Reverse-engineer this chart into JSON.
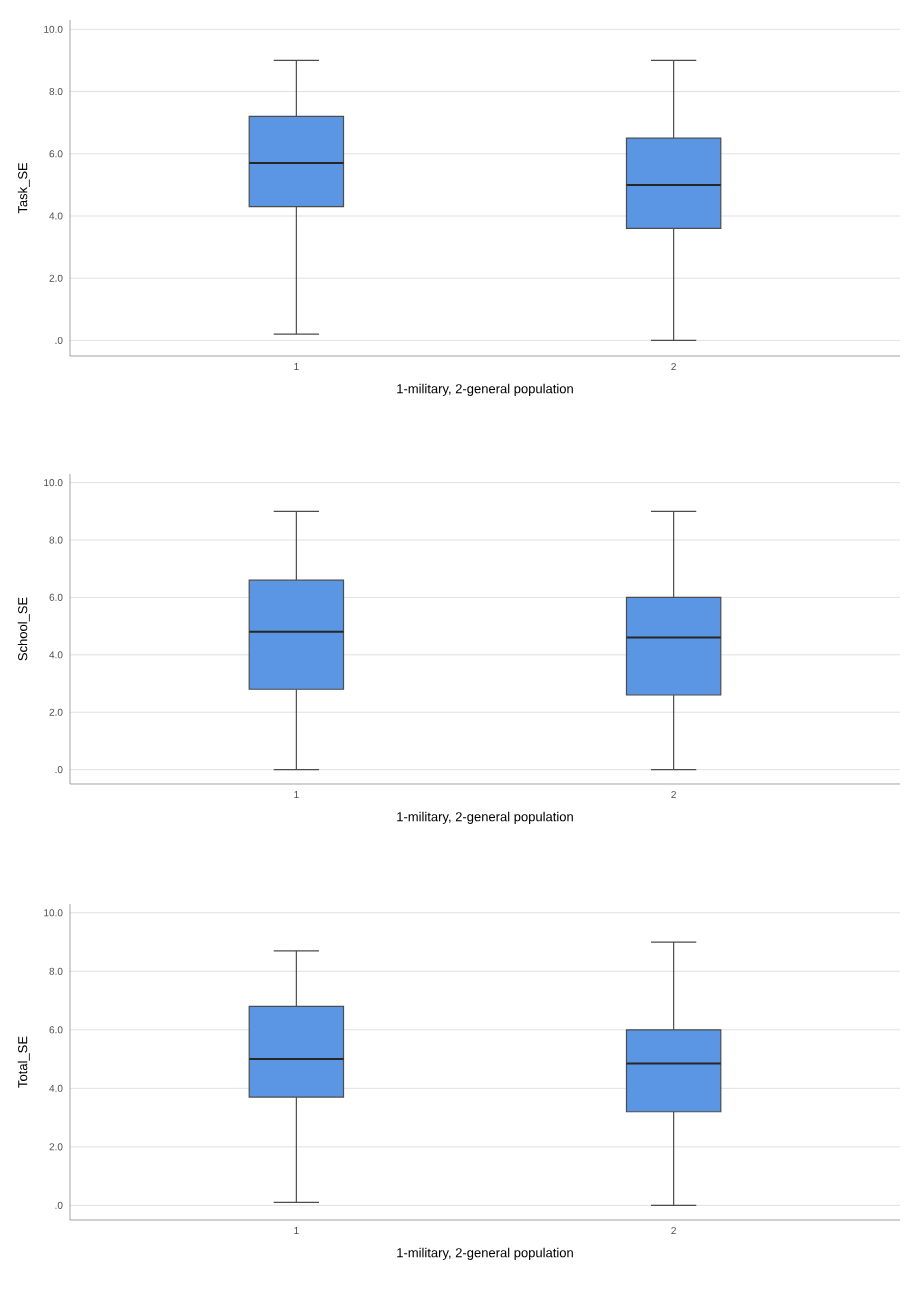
{
  "chart_data": [
    {
      "type": "box",
      "categories": [
        "1",
        "2"
      ],
      "xlabel": "1-military, 2-general population",
      "ylabel": "Task_SE",
      "ylim": [
        -0.5,
        10.3
      ],
      "yticks": [
        {
          "value": 0,
          "label": ".0"
        },
        {
          "value": 2,
          "label": "2.0"
        },
        {
          "value": 4,
          "label": "4.0"
        },
        {
          "value": 6,
          "label": "6.0"
        },
        {
          "value": 8,
          "label": "8.0"
        },
        {
          "value": 10,
          "label": "10.0"
        }
      ],
      "grid": "y",
      "color": "#5a96e3",
      "boxes": [
        {
          "low": 0.2,
          "q1": 4.3,
          "median": 5.7,
          "q3": 7.2,
          "high": 9.0
        },
        {
          "low": 0,
          "q1": 3.6,
          "median": 5.0,
          "q3": 6.5,
          "high": 9.0
        }
      ]
    },
    {
      "type": "box",
      "categories": [
        "1",
        "2"
      ],
      "xlabel": "1-military, 2-general population",
      "ylabel": "School_SE",
      "ylim": [
        -0.5,
        10.3
      ],
      "yticks": [
        {
          "value": 0,
          "label": ".0"
        },
        {
          "value": 2,
          "label": "2.0"
        },
        {
          "value": 4,
          "label": "4.0"
        },
        {
          "value": 6,
          "label": "6.0"
        },
        {
          "value": 8,
          "label": "8.0"
        },
        {
          "value": 10,
          "label": "10.0"
        }
      ],
      "grid": "y",
      "color": "#5a96e3",
      "boxes": [
        {
          "low": 0,
          "q1": 2.8,
          "median": 4.8,
          "q3": 6.6,
          "high": 9.0
        },
        {
          "low": 0,
          "q1": 2.6,
          "median": 4.6,
          "q3": 6.0,
          "high": 9.0
        }
      ]
    },
    {
      "type": "box",
      "categories": [
        "1",
        "2"
      ],
      "xlabel": "1-military, 2-general population",
      "ylabel": "Total_SE",
      "ylim": [
        -0.5,
        10.3
      ],
      "yticks": [
        {
          "value": 0,
          "label": ".0"
        },
        {
          "value": 2,
          "label": "2.0"
        },
        {
          "value": 4,
          "label": "4.0"
        },
        {
          "value": 6,
          "label": "6.0"
        },
        {
          "value": 8,
          "label": "8.0"
        },
        {
          "value": 10,
          "label": "10.0"
        }
      ],
      "grid": "y",
      "color": "#5a96e3",
      "boxes": [
        {
          "low": 0.1,
          "q1": 3.7,
          "median": 5.0,
          "q3": 6.8,
          "high": 8.7
        },
        {
          "low": 0,
          "q1": 3.2,
          "median": 4.85,
          "q3": 6.0,
          "high": 9.0
        }
      ]
    }
  ]
}
